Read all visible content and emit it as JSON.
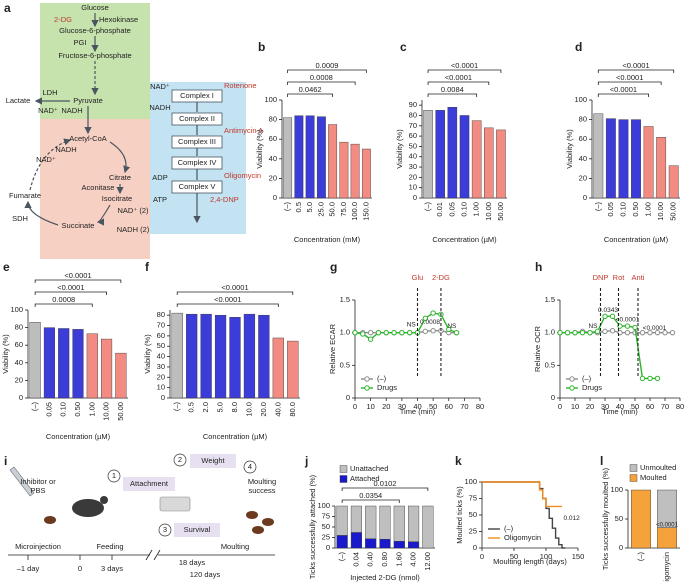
{
  "diagram": {
    "panel": "a",
    "nodes": [
      "Glucose",
      "2-DG",
      "Hexokinase",
      "Glucose-6-phosphate",
      "PGI",
      "Fructose-6-phosphate",
      "Pyruvate",
      "Lactate",
      "LDH",
      "NAD⁺",
      "NADH",
      "Acetyl-CoA",
      "NADH",
      "NAD⁺",
      "Citrate",
      "Aconitase",
      "Fumarate",
      "Isocitrate",
      "NAD⁺ (2)",
      "SDH",
      "Succinate",
      "NADH (2)",
      "NAD⁺",
      "Rotenone",
      "NADH",
      "Complex I",
      "Complex II",
      "Antimycin A",
      "Complex III",
      "Complex IV",
      "Oligomycin",
      "ADP",
      "Complex V",
      "ATP",
      "2,4-DNP"
    ]
  },
  "schematic": {
    "panel": "i",
    "texts": [
      "Inhibitor or",
      "PBS",
      "1",
      "Attachment",
      "2",
      "Weight",
      "3",
      "Survival",
      "4",
      "Moulting",
      "success",
      "Microinjection",
      "Feeding",
      "Moulting",
      "–1 day",
      "0",
      "3 days",
      "18 days",
      "120 days"
    ]
  },
  "chart_data": [
    {
      "panel": "b",
      "type": "bar",
      "categories": [
        "(–)",
        "0.5",
        "5.0",
        "25.0",
        "50.0",
        "75.0",
        "100.0",
        "150.0"
      ],
      "values": [
        82,
        84,
        84,
        83,
        75,
        57,
        55,
        50
      ],
      "colors": [
        "#bdbdbd",
        "#3c3cd8",
        "#3c3cd8",
        "#3c3cd8",
        "#f28b82",
        "#f28b82",
        "#f28b82",
        "#f28b82"
      ],
      "ylim": [
        0,
        100
      ],
      "yticks": [
        0,
        20,
        40,
        60,
        80,
        100
      ],
      "ylabel": "Viability (%)",
      "xlabel": "Concentration (mM)",
      "brackets": [
        {
          "label": "0.0009",
          "from": 0,
          "to": 7
        },
        {
          "label": "0.0008",
          "from": 0,
          "to": 6
        },
        {
          "label": "0.0462",
          "from": 0,
          "to": 4
        }
      ]
    },
    {
      "panel": "c",
      "type": "bar",
      "categories": [
        "(–)",
        "0.01",
        "0.05",
        "0.10",
        "1.00",
        "10.00",
        "50.00"
      ],
      "values": [
        85,
        85,
        88,
        80,
        75,
        68,
        66
      ],
      "colors": [
        "#bdbdbd",
        "#3c3cd8",
        "#3c3cd8",
        "#3c3cd8",
        "#f28b82",
        "#f28b82",
        "#f28b82"
      ],
      "ylim": [
        0,
        95
      ],
      "yticks": [
        0,
        10,
        20,
        30,
        40,
        50,
        60,
        70,
        80,
        90
      ],
      "ylabel": "Viability (%)",
      "xlabel": "Concentration (µM)",
      "brackets": [
        {
          "label": "<0.0001",
          "from": 0,
          "to": 6
        },
        {
          "label": "<0.0001",
          "from": 0,
          "to": 5
        },
        {
          "label": "0.0084",
          "from": 0,
          "to": 4
        }
      ]
    },
    {
      "panel": "d",
      "type": "bar",
      "categories": [
        "(–)",
        "0.05",
        "0.10",
        "0.50",
        "1.00",
        "10.00",
        "50.00"
      ],
      "values": [
        86,
        81,
        80,
        80,
        73,
        62,
        33
      ],
      "colors": [
        "#bdbdbd",
        "#3c3cd8",
        "#3c3cd8",
        "#3c3cd8",
        "#f28b82",
        "#f28b82",
        "#f28b82"
      ],
      "ylim": [
        0,
        100
      ],
      "yticks": [
        0,
        20,
        40,
        60,
        80,
        100
      ],
      "ylabel": "Viability (%)",
      "xlabel": "Concentration (µM)",
      "brackets": [
        {
          "label": "<0.0001",
          "from": 0,
          "to": 6
        },
        {
          "label": "<0.0001",
          "from": 0,
          "to": 5
        },
        {
          "label": "<0.0001",
          "from": 0,
          "to": 4
        }
      ]
    },
    {
      "panel": "e",
      "type": "bar",
      "categories": [
        "(–)",
        "0.05",
        "0.10",
        "0.50",
        "1.00",
        "10.00",
        "50.00"
      ],
      "values": [
        86,
        80,
        79,
        78,
        73,
        67,
        51
      ],
      "colors": [
        "#bdbdbd",
        "#3c3cd8",
        "#3c3cd8",
        "#3c3cd8",
        "#f28b82",
        "#f28b82",
        "#f28b82"
      ],
      "ylim": [
        0,
        100
      ],
      "yticks": [
        0,
        20,
        40,
        60,
        80,
        100
      ],
      "ylabel": "Viability (%)",
      "xlabel": "Concentration (µM)",
      "brackets": [
        {
          "label": "<0.0001",
          "from": 0,
          "to": 6
        },
        {
          "label": "<0.0001",
          "from": 0,
          "to": 5
        },
        {
          "label": "0.0008",
          "from": 0,
          "to": 4
        }
      ]
    },
    {
      "panel": "f",
      "type": "bar",
      "categories": [
        "(–)",
        "0.5",
        "2.0",
        "5.0",
        "8.0",
        "10.0",
        "20.0",
        "40.0",
        "80.0"
      ],
      "values": [
        82,
        81,
        81,
        80,
        78,
        81,
        80,
        58,
        55
      ],
      "colors": [
        "#bdbdbd",
        "#3c3cd8",
        "#3c3cd8",
        "#3c3cd8",
        "#3c3cd8",
        "#3c3cd8",
        "#3c3cd8",
        "#f28b82",
        "#f28b82"
      ],
      "ylim": [
        0,
        85
      ],
      "yticks": [
        0,
        10,
        20,
        30,
        40,
        50,
        60,
        70,
        80
      ],
      "ylabel": "Viability (%)",
      "xlabel": "Concentration (µM)",
      "brackets": [
        {
          "label": "<0.0001",
          "from": 0,
          "to": 8
        },
        {
          "label": "<0.0001",
          "from": 0,
          "to": 7
        }
      ]
    },
    {
      "panel": "g",
      "type": "line",
      "x": [
        0,
        5,
        10,
        15,
        20,
        25,
        30,
        35,
        40,
        45,
        50,
        55,
        60,
        65
      ],
      "series": [
        {
          "name": "(–)",
          "color": "#8c8c8c",
          "values": [
            1,
            1,
            1,
            1,
            1,
            1,
            1,
            1,
            1,
            1.02,
            1.03,
            1.03,
            1,
            1
          ]
        },
        {
          "name": "Drugs",
          "color": "#2db52d",
          "values": [
            1,
            0.98,
            0.9,
            1,
            1,
            1,
            1,
            1,
            1,
            1.22,
            1.3,
            1.28,
            1.05,
            1
          ]
        }
      ],
      "xlim": [
        0,
        80
      ],
      "xticks": [
        0,
        10,
        20,
        30,
        40,
        50,
        60,
        70,
        80
      ],
      "ylim": [
        0,
        1.5
      ],
      "yticks": [
        0,
        0.5,
        {
          "value": 1,
          "label": "1.0"
        },
        1.5
      ],
      "ylabel": "Relative ECAR",
      "xlabel": "Time (min)",
      "events": [
        {
          "x": 40,
          "label": "Glu"
        },
        {
          "x": 55,
          "label": "2-DG"
        }
      ],
      "annotations": [
        {
          "label": "NS",
          "x": 36,
          "y": 1.12
        },
        {
          "label": "0.0008",
          "x": 48,
          "y": 1.16
        },
        {
          "label": "NS",
          "x": 62,
          "y": 1.1
        }
      ],
      "legend": "lower left"
    },
    {
      "panel": "h",
      "type": "line",
      "x": [
        0,
        5,
        10,
        15,
        20,
        25,
        30,
        35,
        40,
        45,
        50,
        55,
        60,
        65,
        70,
        75
      ],
      "series": [
        {
          "name": "(–)",
          "color": "#8c8c8c",
          "values": [
            1,
            1,
            1,
            1.02,
            1,
            1,
            1.02,
            1.03,
            1,
            1,
            1,
            1,
            1,
            1,
            1,
            1
          ]
        },
        {
          "name": "Drugs",
          "color": "#2db52d",
          "values": [
            1,
            1,
            1,
            1,
            1,
            1.02,
            1.25,
            1.25,
            1.1,
            1.1,
            1.08,
            0.3,
            0.3,
            0.3,
            null,
            null
          ]
        }
      ],
      "xlim": [
        0,
        80
      ],
      "xticks": [
        0,
        10,
        20,
        30,
        40,
        50,
        60,
        70,
        80
      ],
      "ylim": [
        0,
        1.5
      ],
      "yticks": [
        0,
        0.5,
        {
          "value": 1,
          "label": "1.0"
        },
        1.5
      ],
      "ylabel": "Relative OCR",
      "xlabel": "Time (min)",
      "events": [
        {
          "x": 27,
          "label": "DNP"
        },
        {
          "x": 39,
          "label": "Rot"
        },
        {
          "x": 52,
          "label": "Anti"
        }
      ],
      "annotations": [
        {
          "label": "NS",
          "x": 22,
          "y": 1.1
        },
        {
          "label": "0.0343",
          "x": 32,
          "y": 1.34
        },
        {
          "label": "<0.0001",
          "x": 45,
          "y": 1.2
        },
        {
          "label": "<0.0001",
          "x": 63,
          "y": 1.07
        }
      ],
      "legend": "lower left"
    },
    {
      "panel": "j",
      "type": "stacked_bar",
      "categories": [
        "(–)",
        "0.04",
        "0.40",
        "0.80",
        "1.60",
        "4.00",
        "12.00"
      ],
      "series": [
        {
          "name": "Attached",
          "color": "#1a1acc",
          "values": [
            30,
            37,
            22,
            21,
            16,
            15,
            0
          ]
        },
        {
          "name": "Unattached",
          "color": "#bfbfbf",
          "values": [
            70,
            63,
            78,
            79,
            84,
            85,
            100
          ]
        }
      ],
      "ylim": [
        0,
        100
      ],
      "yticks": [
        0,
        25,
        50,
        75,
        100
      ],
      "ylabel": "Ticks successfully attached (%)",
      "xlabel": "Injected 2-DG (nmol)",
      "brackets": [
        {
          "label": "0.0102",
          "from": 0,
          "to": 6
        },
        {
          "label": "0.0354",
          "from": 0,
          "to": 4
        }
      ]
    },
    {
      "panel": "k",
      "type": "step",
      "x": [
        0,
        85,
        90,
        95,
        100,
        105,
        110,
        115,
        120,
        125,
        130
      ],
      "series": [
        {
          "name": "(–)",
          "color": "#444444",
          "values": [
            100,
            100,
            90,
            75,
            60,
            45,
            30,
            15,
            5,
            0,
            0
          ]
        },
        {
          "name": "Oligomycin",
          "color": "#f28c1e",
          "values": [
            100,
            100,
            88,
            75,
            63,
            63,
            63,
            63,
            63,
            63,
            null
          ]
        }
      ],
      "xlim": [
        0,
        150
      ],
      "xticks": [
        0,
        50,
        100,
        150
      ],
      "ylim": [
        0,
        100
      ],
      "yticks": [
        0,
        25,
        50,
        75,
        100
      ],
      "ylabel": "Moulted ticks (%)",
      "xlabel": "Moulting length (days)",
      "annotations": [
        {
          "label": "0.012",
          "x": 140,
          "y": 45
        }
      ],
      "legend": "lower left"
    },
    {
      "panel": "l",
      "type": "stacked_bar",
      "categories": [
        "(–)",
        "Oligomycin"
      ],
      "series": [
        {
          "name": "Moulted",
          "color": "#f5a23a",
          "values": [
            100,
            35
          ]
        },
        {
          "name": "Unmoulted",
          "color": "#bfbfbf",
          "values": [
            0,
            65
          ]
        }
      ],
      "ylim": [
        0,
        100
      ],
      "yticks": [
        0,
        50,
        100
      ],
      "ylabel": "Ticks successfully moulted (%)",
      "annotations": [
        {
          "label": "<0.0001",
          "x": 1,
          "y": 40
        }
      ]
    }
  ]
}
